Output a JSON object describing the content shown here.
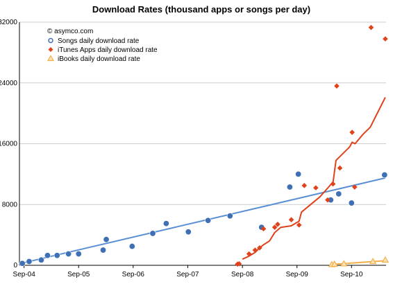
{
  "chart_data": {
    "type": "scatter",
    "title": "Download Rates (thousand apps or songs per day)",
    "copyright": "© asymco.com",
    "xlabel": "",
    "ylabel": "",
    "xlim": [
      "2004-08-01",
      "2011-04-20"
    ],
    "ylim": [
      0,
      32000
    ],
    "grid": true,
    "legend_position": "top-left",
    "y_ticks": [
      0,
      8000,
      16000,
      24000,
      32000
    ],
    "y_tick_labels": [
      "0",
      "8000",
      "16000",
      "24000",
      "32000"
    ],
    "x_ticks": [
      "2004-09-01",
      "2005-09-01",
      "2006-09-01",
      "2007-09-01",
      "2008-09-01",
      "2009-09-01",
      "2010-09-01"
    ],
    "x_tick_labels": [
      "Sep-04",
      "Sep-05",
      "Sep-06",
      "Sep-07",
      "Sep-08",
      "Sep-09",
      "Sep-10"
    ],
    "series": [
      {
        "name": "Songs daily download rate",
        "marker": "circle",
        "color": "#3f6fb5",
        "points": [
          {
            "x": "2004-08-20",
            "y": 250
          },
          {
            "x": "2004-10-05",
            "y": 500
          },
          {
            "x": "2004-12-25",
            "y": 700
          },
          {
            "x": "2005-02-05",
            "y": 1300
          },
          {
            "x": "2005-04-10",
            "y": 1300
          },
          {
            "x": "2005-06-25",
            "y": 1500
          },
          {
            "x": "2005-09-01",
            "y": 1500
          },
          {
            "x": "2006-02-12",
            "y": 2000
          },
          {
            "x": "2006-03-05",
            "y": 3400
          },
          {
            "x": "2006-08-25",
            "y": 2500
          },
          {
            "x": "2007-01-10",
            "y": 4200
          },
          {
            "x": "2007-04-10",
            "y": 5500
          },
          {
            "x": "2007-09-05",
            "y": 4400
          },
          {
            "x": "2008-01-15",
            "y": 5900
          },
          {
            "x": "2008-06-10",
            "y": 6500
          },
          {
            "x": "2009-01-07",
            "y": 5000
          },
          {
            "x": "2009-07-15",
            "y": 10300
          },
          {
            "x": "2009-09-10",
            "y": 12000
          },
          {
            "x": "2010-04-15",
            "y": 8600
          },
          {
            "x": "2010-06-07",
            "y": 9400
          },
          {
            "x": "2010-09-01",
            "y": 8200
          },
          {
            "x": "2011-04-10",
            "y": 11900
          }
        ]
      },
      {
        "name": "iTunes Apps daily download rate",
        "marker": "diamond",
        "color": "#e0421b",
        "points": [
          {
            "x": "2008-07-30",
            "y": 150
          },
          {
            "x": "2008-08-10",
            "y": 200
          },
          {
            "x": "2008-10-15",
            "y": 1500
          },
          {
            "x": "2008-11-25",
            "y": 2000
          },
          {
            "x": "2008-12-25",
            "y": 2300
          },
          {
            "x": "2009-01-20",
            "y": 4800
          },
          {
            "x": "2009-04-05",
            "y": 5000
          },
          {
            "x": "2009-04-25",
            "y": 5400
          },
          {
            "x": "2009-07-25",
            "y": 6000
          },
          {
            "x": "2009-09-15",
            "y": 5300
          },
          {
            "x": "2009-10-20",
            "y": 10500
          },
          {
            "x": "2010-01-05",
            "y": 10200
          },
          {
            "x": "2010-03-25",
            "y": 8600
          },
          {
            "x": "2010-04-30",
            "y": 10700
          },
          {
            "x": "2010-05-25",
            "y": 23600
          },
          {
            "x": "2010-06-15",
            "y": 12800
          },
          {
            "x": "2010-09-05",
            "y": 17500
          },
          {
            "x": "2010-09-22",
            "y": 10300
          },
          {
            "x": "2011-01-10",
            "y": 31300
          },
          {
            "x": "2011-04-15",
            "y": 29800
          }
        ]
      },
      {
        "name": "iBooks daily download rate",
        "marker": "triangle",
        "color": "#f2b14c",
        "points": [
          {
            "x": "2010-04-22",
            "y": 100
          },
          {
            "x": "2010-05-10",
            "y": 150
          },
          {
            "x": "2010-07-12",
            "y": 200
          },
          {
            "x": "2011-01-22",
            "y": 500
          },
          {
            "x": "2011-04-15",
            "y": 700
          }
        ]
      }
    ],
    "trendlines": [
      {
        "series": "Songs daily download rate",
        "color": "#5a8fd4",
        "points": [
          {
            "x": "2004-08-01",
            "y": 200
          },
          {
            "x": "2011-04-15",
            "y": 11500
          }
        ]
      },
      {
        "series": "iTunes Apps daily download rate",
        "color": "#e0421b",
        "points": [
          {
            "x": "2008-09-01",
            "y": 800
          },
          {
            "x": "2008-10-15",
            "y": 1200
          },
          {
            "x": "2008-11-25",
            "y": 1700
          },
          {
            "x": "2008-12-25",
            "y": 2300
          },
          {
            "x": "2009-01-20",
            "y": 2700
          },
          {
            "x": "2009-03-01",
            "y": 3200
          },
          {
            "x": "2009-04-05",
            "y": 4300
          },
          {
            "x": "2009-05-15",
            "y": 5000
          },
          {
            "x": "2009-07-25",
            "y": 5200
          },
          {
            "x": "2009-09-15",
            "y": 5800
          },
          {
            "x": "2009-10-01",
            "y": 7000
          },
          {
            "x": "2009-12-01",
            "y": 8000
          },
          {
            "x": "2010-02-01",
            "y": 9000
          },
          {
            "x": "2010-04-01",
            "y": 10300
          },
          {
            "x": "2010-05-01",
            "y": 11000
          },
          {
            "x": "2010-05-20",
            "y": 13800
          },
          {
            "x": "2010-08-20",
            "y": 15600
          },
          {
            "x": "2010-09-05",
            "y": 16200
          },
          {
            "x": "2010-09-25",
            "y": 16000
          },
          {
            "x": "2010-11-15",
            "y": 17200
          },
          {
            "x": "2011-01-05",
            "y": 18200
          },
          {
            "x": "2011-02-10",
            "y": 19600
          },
          {
            "x": "2011-04-15",
            "y": 22100
          }
        ]
      },
      {
        "series": "iBooks daily download rate",
        "color": "#f2b14c",
        "points": [
          {
            "x": "2010-04-15",
            "y": 100
          },
          {
            "x": "2011-04-15",
            "y": 600
          }
        ]
      }
    ]
  }
}
